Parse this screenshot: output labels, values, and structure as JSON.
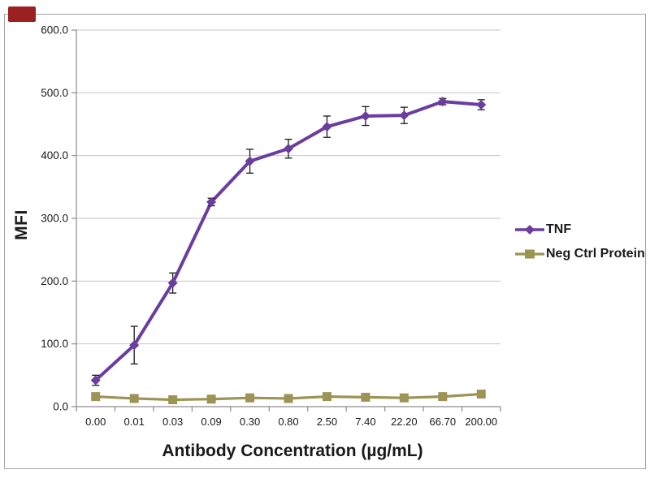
{
  "chart_data": {
    "type": "line",
    "title": "",
    "xlabel": "Antibody Concentration (µg/mL)",
    "ylabel": "MFI",
    "ylim": [
      0,
      600
    ],
    "y_tick_step": 100,
    "y_tick_labels": [
      "0.0",
      "100.0",
      "200.0",
      "300.0",
      "400.0",
      "500.0",
      "600.0"
    ],
    "categories": [
      "0.00",
      "0.01",
      "0.03",
      "0.09",
      "0.30",
      "0.80",
      "2.50",
      "7.40",
      "22.20",
      "66.70",
      "200.00"
    ],
    "grid": "horizontal",
    "legend_position": "right",
    "series": [
      {
        "name": "TNF",
        "color": "#6a3d9e",
        "marker": "diamond",
        "values": [
          42,
          98,
          197,
          326,
          391,
          411,
          446,
          463,
          464,
          486,
          481
        ],
        "errors": [
          8,
          30,
          16,
          6,
          19,
          15,
          17,
          15,
          13,
          5,
          8
        ]
      },
      {
        "name": "Neg Ctrl Protein",
        "color": "#9c9355",
        "marker": "square",
        "values": [
          16,
          13,
          11,
          12,
          14,
          13,
          16,
          15,
          14,
          16,
          20
        ],
        "errors": [
          2,
          2,
          2,
          2,
          2,
          2,
          2,
          2,
          2,
          2,
          2
        ]
      }
    ]
  },
  "colors": {
    "badge": "#9b2022",
    "grid": "#c6c6c6",
    "axis": "#8c8c8c",
    "frame_border": "#a3a3a3",
    "error_bar": "#1a1a1a",
    "tick_text": "#1a1a1a",
    "background": "#ffffff"
  }
}
